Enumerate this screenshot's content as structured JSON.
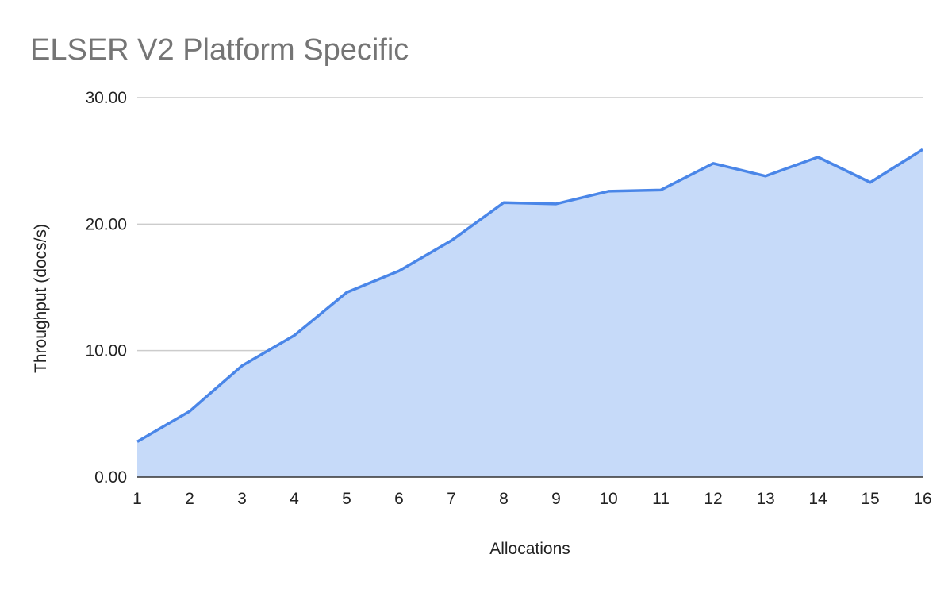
{
  "chart_data": {
    "type": "area",
    "title": "ELSER V2 Platform Specific",
    "xlabel": "Allocations",
    "ylabel": "Throughput (docs/s)",
    "x": [
      1,
      2,
      3,
      4,
      5,
      6,
      7,
      8,
      9,
      10,
      11,
      12,
      13,
      14,
      15,
      16
    ],
    "series": [
      {
        "values": [
          2.8,
          5.2,
          8.8,
          11.2,
          14.6,
          16.3,
          18.7,
          21.7,
          21.6,
          22.6,
          22.7,
          24.8,
          23.8,
          25.3,
          23.3,
          25.9
        ]
      }
    ],
    "ylim": [
      0,
      30
    ],
    "yticks": [
      "0.00",
      "10.00",
      "20.00",
      "30.00"
    ],
    "grid": true,
    "legend": "none",
    "colors": {
      "line": "#4a86e8",
      "fill": "#c6daf9"
    }
  }
}
